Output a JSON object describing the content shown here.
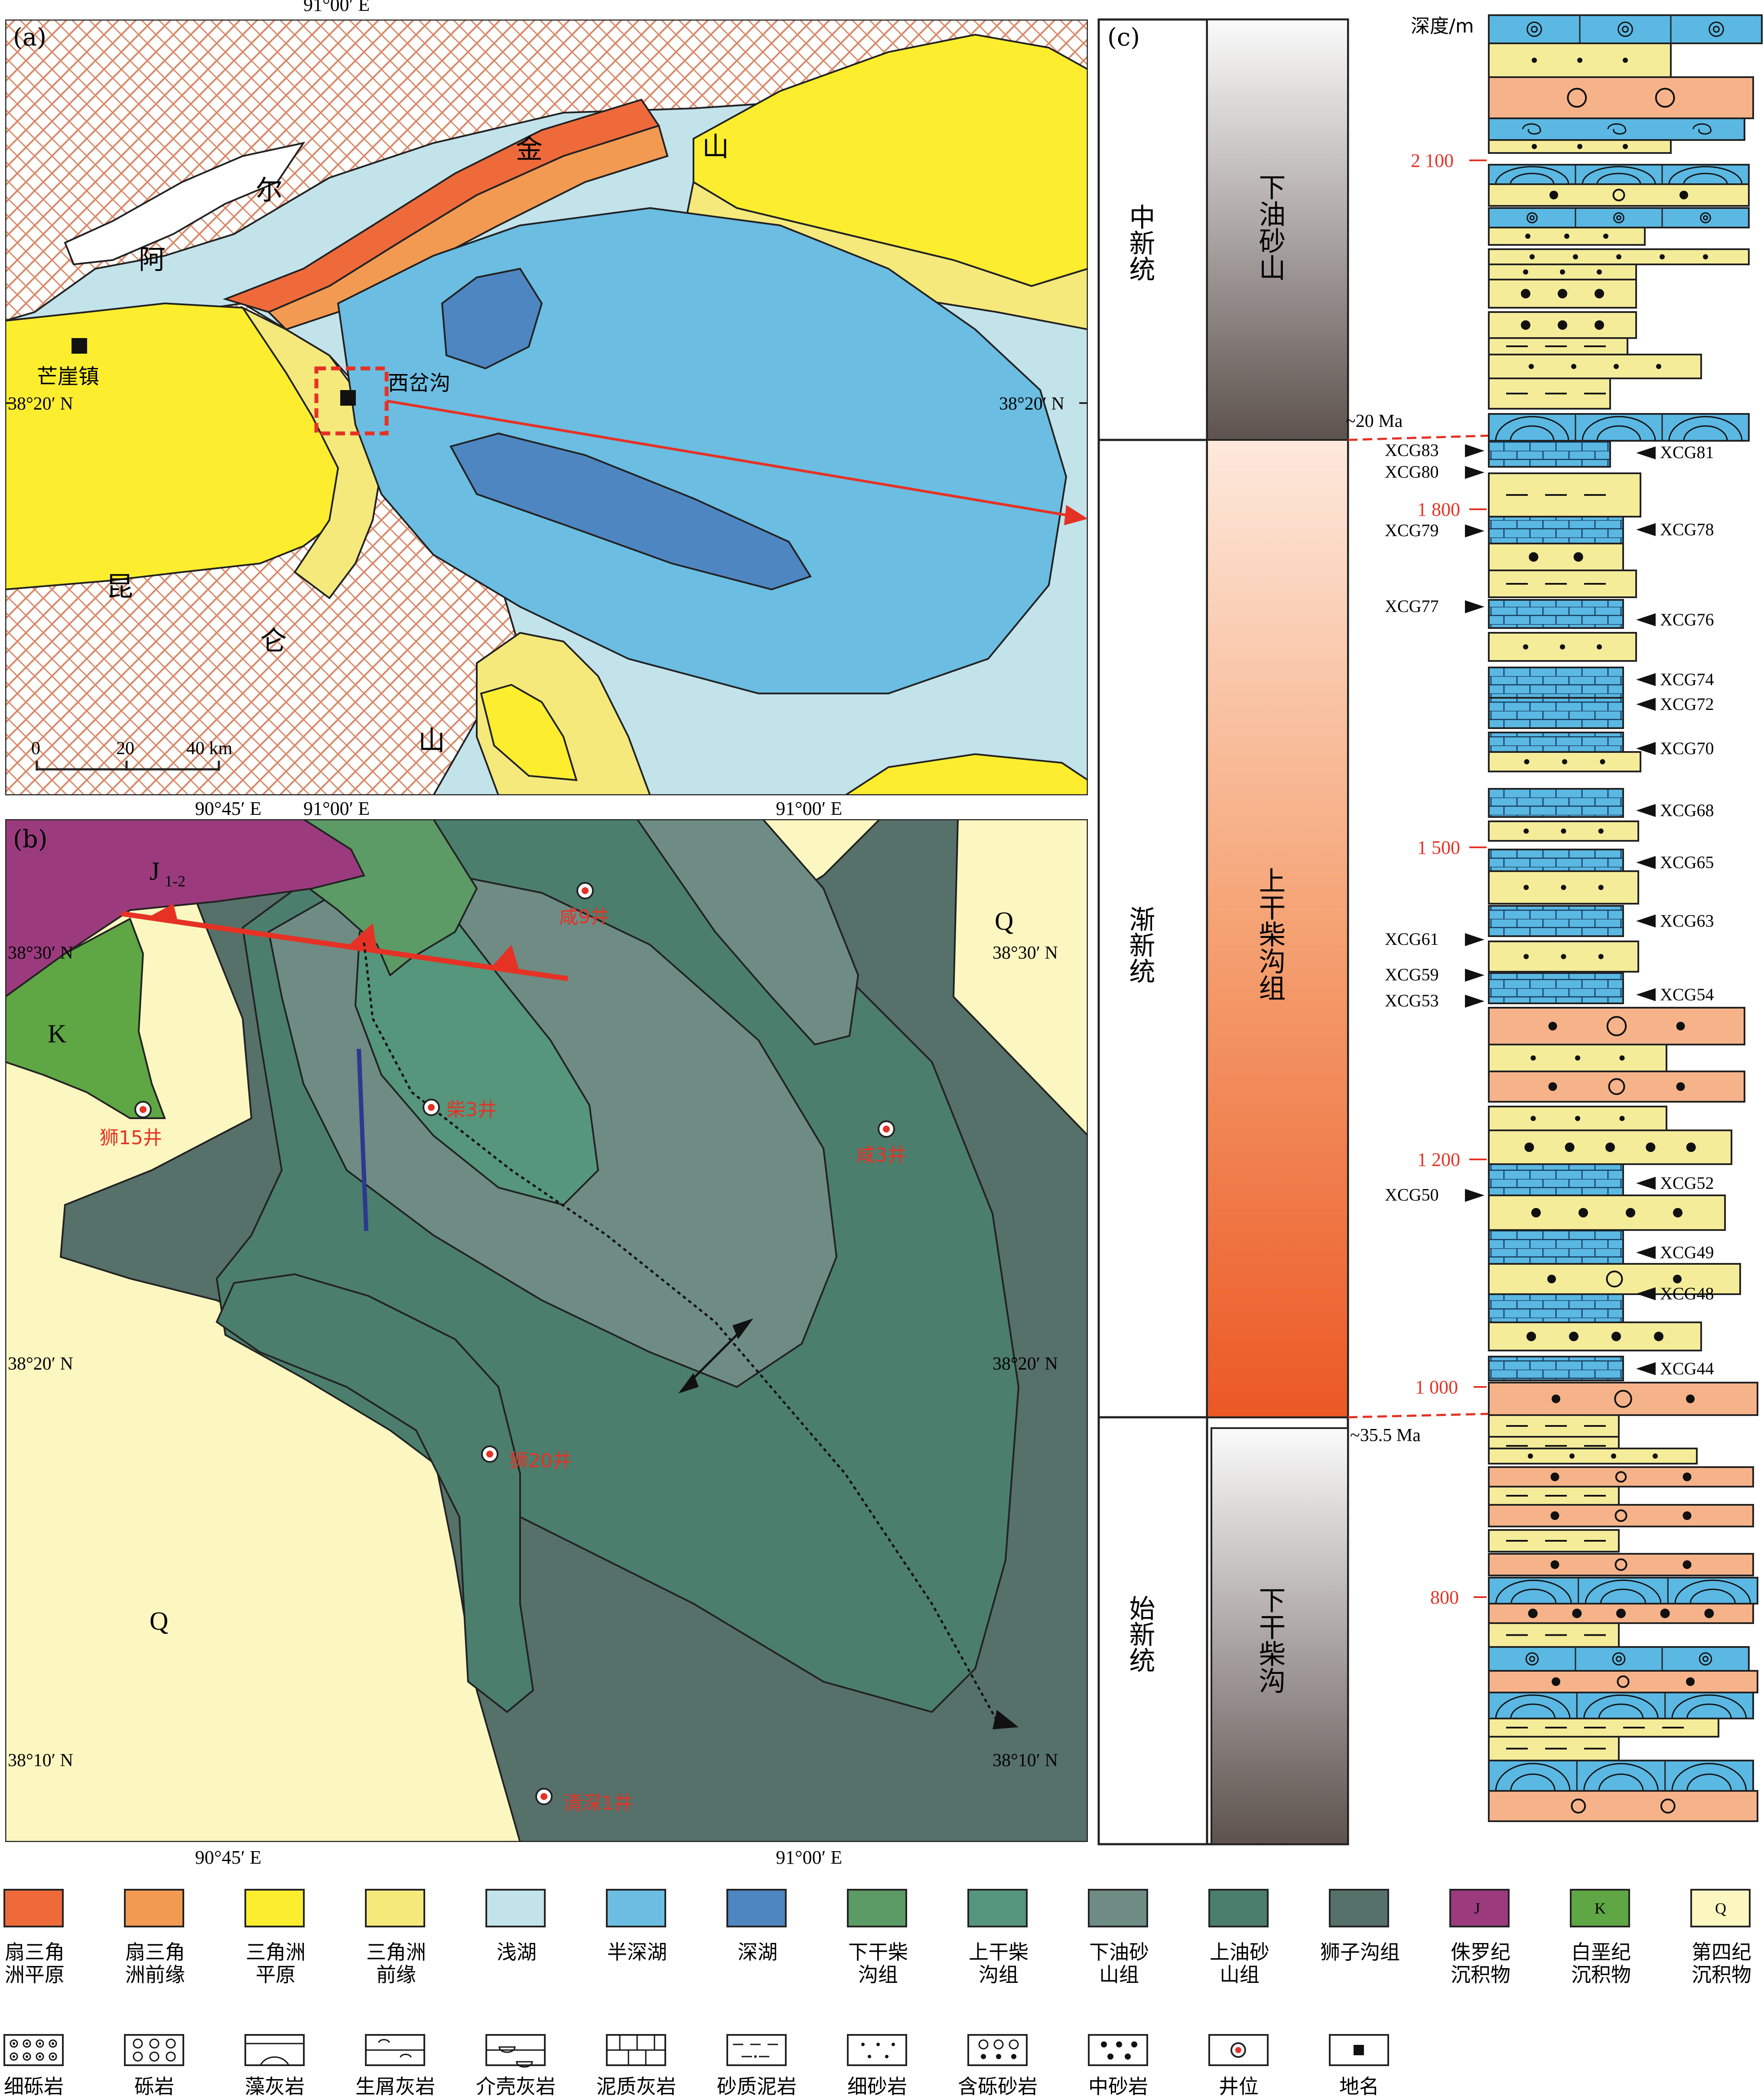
{
  "panel_a": {
    "label": "(a)",
    "coord_top": "91°00′ E",
    "coord_bottom": "91°00′ E",
    "lat_left": "38°20′ N",
    "lat_right": "38°20′ N",
    "mountain_north": [
      "阿",
      "尔",
      "金",
      "山"
    ],
    "mountain_south": [
      "昆",
      "仑",
      "山"
    ],
    "place_mangya": "芒崖镇",
    "place_xicha": "西岔沟",
    "scale_ticks": [
      "0",
      "20",
      "40 km"
    ]
  },
  "panel_b": {
    "label": "(b)",
    "lon_top_left": "90°45′ E",
    "lon_top_right": "91°00′ E",
    "lon_bottom_left": "90°45′ E",
    "lon_bottom_right": "91°00′ E",
    "lat_30_left": "38°30′ N",
    "lat_30_right": "38°30′ N",
    "lat_20_left": "38°20′ N",
    "lat_20_right": "38°20′ N",
    "lat_10_left": "38°10′ N",
    "lat_10_right": "38°10′ N",
    "unit_j": "J",
    "unit_j_sub": "1-2",
    "unit_k": "K",
    "unit_q_top": "Q",
    "unit_q_bottom": "Q",
    "wells": [
      "咸9井",
      "柴3井",
      "狮15井",
      "咸3井",
      "狮20井",
      "清深1井"
    ]
  },
  "panel_c": {
    "label": "(c)",
    "depth_title": "深度/m",
    "depth_ticks": [
      "2 100",
      "1 800",
      "1 500",
      "1 200",
      "1 000",
      "800"
    ],
    "age_marks": [
      "~20 Ma",
      "~35.5 Ma"
    ],
    "series": [
      "中新统",
      "渐新统",
      "始新统"
    ],
    "formations": [
      "下油砂山",
      "上干柴沟组",
      "下干柴沟"
    ],
    "samples_left": [
      "XCG83",
      "XCG80",
      "XCG79",
      "XCG77",
      "XCG61",
      "XCG59",
      "XCG53",
      "XCG50"
    ],
    "samples_right": [
      "XCG81",
      "XCG78",
      "XCG76",
      "XCG74",
      "XCG72",
      "XCG70",
      "XCG68",
      "XCG65",
      "XCG63",
      "XCG54",
      "XCG52",
      "XCG49",
      "XCG48",
      "XCG44"
    ]
  },
  "legend_row1": [
    {
      "label1": "扇三角",
      "label2": "洲平原",
      "color": "#ef6a3b"
    },
    {
      "label1": "扇三角",
      "label2": "洲前缘",
      "color": "#f39a52"
    },
    {
      "label1": "三角洲",
      "label2": "平原",
      "color": "#fcee2f"
    },
    {
      "label1": "三角洲",
      "label2": "前缘",
      "color": "#f5e97c"
    },
    {
      "label1": "浅湖",
      "label2": "",
      "color": "#c3e3eb"
    },
    {
      "label1": "半深湖",
      "label2": "",
      "color": "#6bbde2"
    },
    {
      "label1": "深湖",
      "label2": "",
      "color": "#4e86c2"
    },
    {
      "label1": "下干柴",
      "label2": "沟组",
      "color": "#5c9a66"
    },
    {
      "label1": "上干柴",
      "label2": "沟组",
      "color": "#55967c"
    },
    {
      "label1": "下油砂",
      "label2": "山组",
      "color": "#6e8c84"
    },
    {
      "label1": "上油砂",
      "label2": "山组",
      "color": "#4b7e6d"
    },
    {
      "label1": "狮子沟组",
      "label2": "",
      "color": "#56706a"
    },
    {
      "label1": "侏罗纪",
      "label2": "沉积物",
      "color": "#9b3b7e",
      "box": "J"
    },
    {
      "label1": "白垩纪",
      "label2": "沉积物",
      "color": "#5fa644",
      "box": "K"
    },
    {
      "label1": "第四纪",
      "label2": "沉积物",
      "color": "#fcf7c1",
      "box": "Q"
    }
  ],
  "legend_row2": [
    {
      "label": "细砾岩",
      "pattern": "fine-conglomerate"
    },
    {
      "label": "砾岩",
      "pattern": "conglomerate"
    },
    {
      "label": "藻灰岩",
      "pattern": "algal-limestone"
    },
    {
      "label": "生屑灰岩",
      "pattern": "bioclastic-limestone"
    },
    {
      "label": "介壳灰岩",
      "pattern": "shell-limestone"
    },
    {
      "label": "泥质灰岩",
      "pattern": "argillaceous-limestone"
    },
    {
      "label": "砂质泥岩",
      "pattern": "sandy-mudstone"
    },
    {
      "label": "细砂岩",
      "pattern": "fine-sandstone"
    },
    {
      "label": "含砾砂岩",
      "pattern": "pebbly-sandstone"
    },
    {
      "label": "中砂岩",
      "pattern": "medium-sandstone"
    },
    {
      "label": "井位",
      "pattern": "well"
    },
    {
      "label": "地名",
      "pattern": "place"
    }
  ]
}
